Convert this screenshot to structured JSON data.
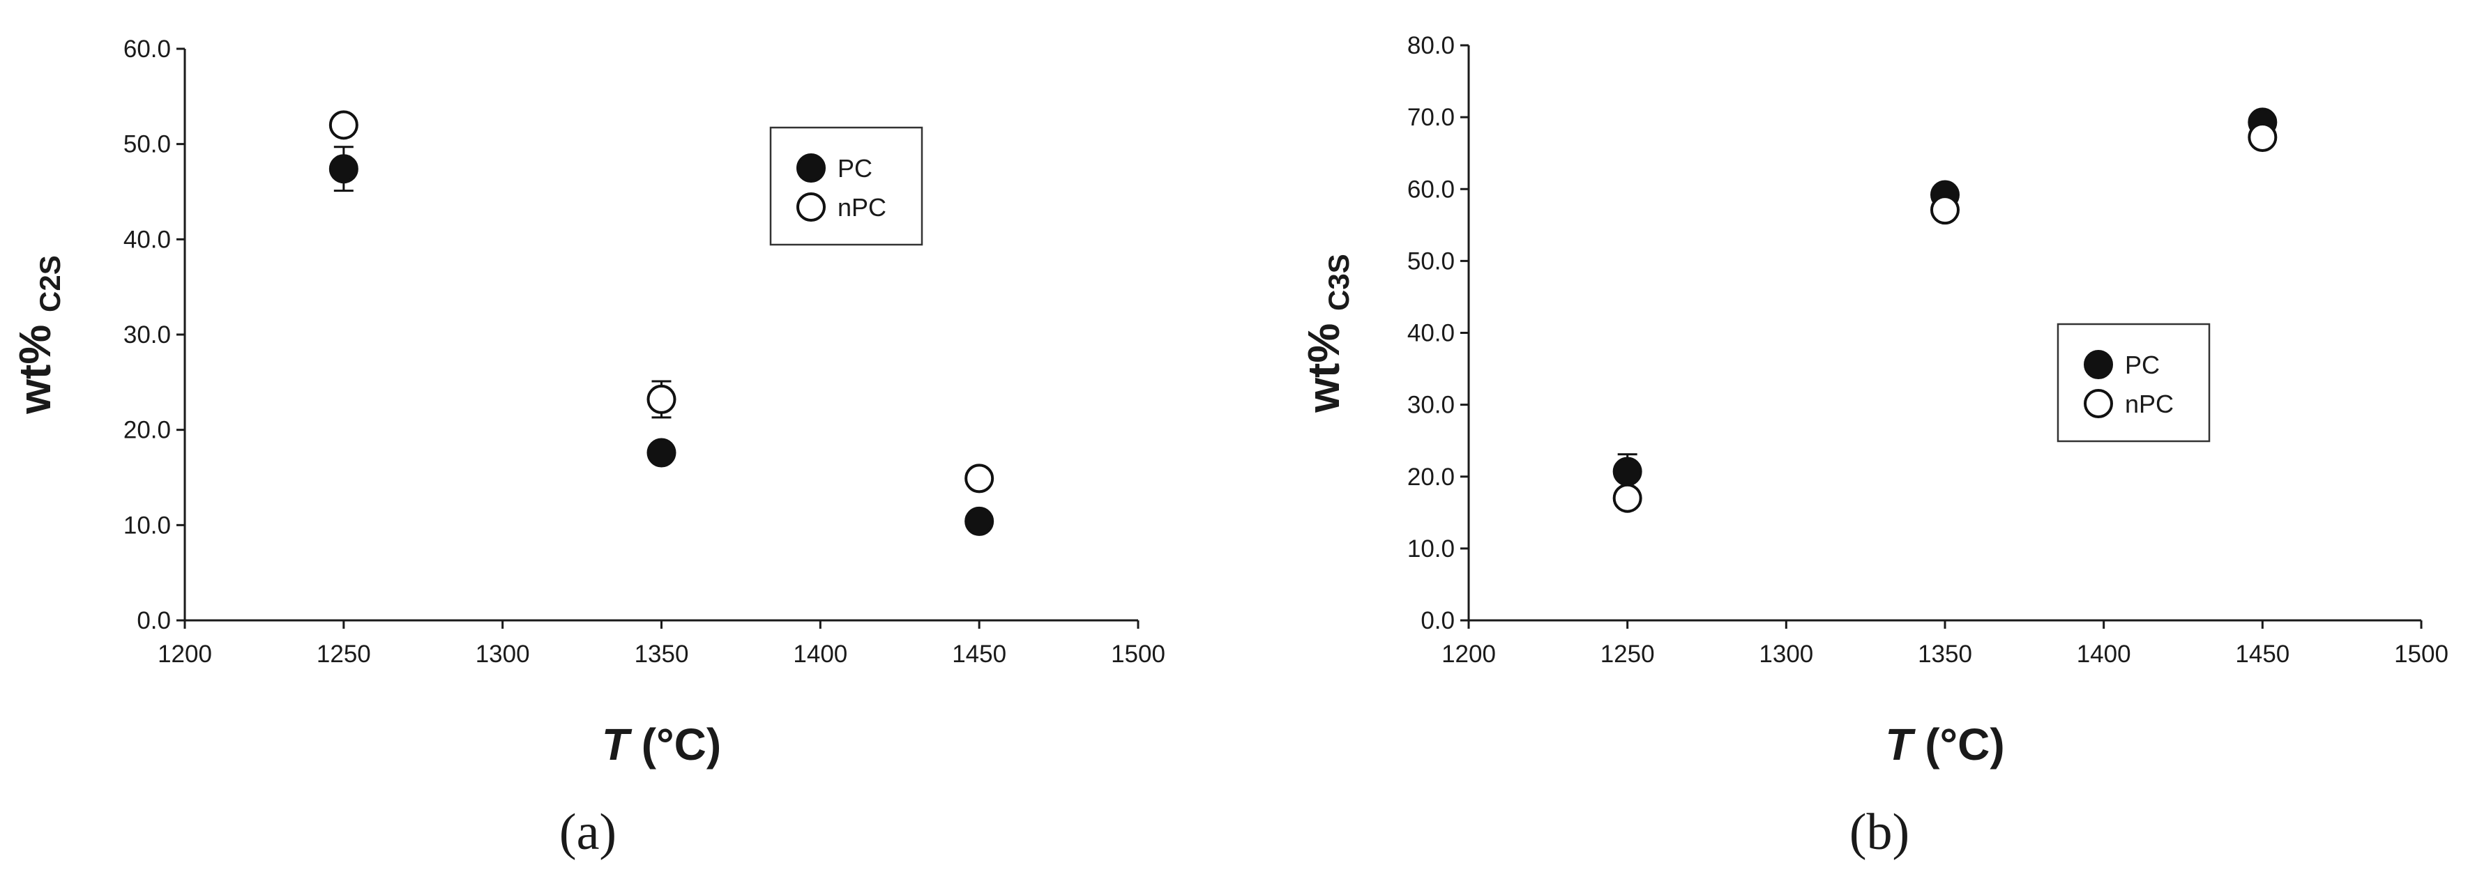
{
  "chart_data": [
    {
      "type": "scatter",
      "panel_label": "(a)",
      "ylabel": {
        "main": "wt%",
        "sub": "C2S"
      },
      "xlabel": {
        "symbol": "T",
        "unit": " (°C)"
      },
      "xlim": [
        1200,
        1500
      ],
      "ylim": [
        0,
        60
      ],
      "x_ticks": [
        "1200",
        "1250",
        "1300",
        "1350",
        "1400",
        "1450",
        "1500"
      ],
      "y_ticks": [
        "0.0",
        "10.0",
        "20.0",
        "30.0",
        "40.0",
        "50.0",
        "60.0"
      ],
      "legend_position": "top-right",
      "series": [
        {
          "name": "PC",
          "marker": "filled-circle",
          "points": [
            {
              "x": 1250,
              "y": 47.4,
              "err": 2.3
            },
            {
              "x": 1350,
              "y": 17.6,
              "err": 0
            },
            {
              "x": 1450,
              "y": 10.4,
              "err": 0
            }
          ]
        },
        {
          "name": "nPC",
          "marker": "open-circle",
          "points": [
            {
              "x": 1250,
              "y": 52.0,
              "err": 0
            },
            {
              "x": 1350,
              "y": 23.2,
              "err": 1.9
            },
            {
              "x": 1450,
              "y": 14.9,
              "err": 0
            }
          ]
        }
      ]
    },
    {
      "type": "scatter",
      "panel_label": "(b)",
      "ylabel": {
        "main": "wt%",
        "sub": "C3S"
      },
      "xlabel": {
        "symbol": "T",
        "unit": " (°C)"
      },
      "xlim": [
        1200,
        1500
      ],
      "ylim": [
        0,
        80
      ],
      "x_ticks": [
        "1200",
        "1250",
        "1300",
        "1350",
        "1400",
        "1450",
        "1500"
      ],
      "y_ticks": [
        "0.0",
        "10.0",
        "20.0",
        "30.0",
        "40.0",
        "50.0",
        "60.0",
        "70.0",
        "80.0"
      ],
      "legend_position": "center-right",
      "series": [
        {
          "name": "PC",
          "marker": "filled-circle",
          "points": [
            {
              "x": 1250,
              "y": 20.7,
              "err": 2.4
            },
            {
              "x": 1350,
              "y": 59.2,
              "err": 0
            },
            {
              "x": 1450,
              "y": 69.3,
              "err": 0
            }
          ]
        },
        {
          "name": "nPC",
          "marker": "open-circle",
          "points": [
            {
              "x": 1250,
              "y": 17.0,
              "err": 0
            },
            {
              "x": 1350,
              "y": 57.1,
              "err": 0
            },
            {
              "x": 1450,
              "y": 67.2,
              "err": 0
            }
          ]
        }
      ]
    }
  ]
}
